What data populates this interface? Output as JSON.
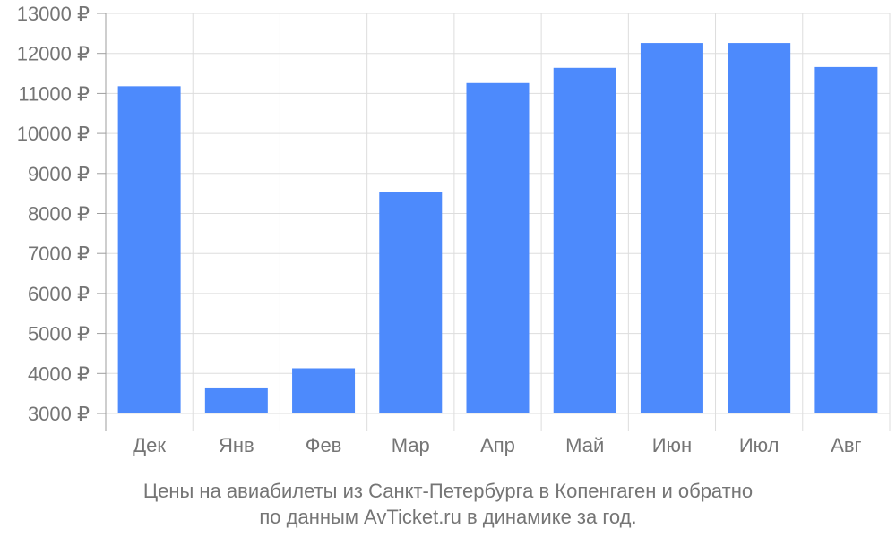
{
  "chart_data": {
    "type": "bar",
    "categories": [
      "Дек",
      "Янв",
      "Фев",
      "Мар",
      "Апр",
      "Май",
      "Июн",
      "Июл",
      "Авг"
    ],
    "values": [
      11180,
      3650,
      4130,
      8540,
      11260,
      11640,
      12260,
      12260,
      11660
    ],
    "ylim": [
      3000,
      13000
    ],
    "yticks": [
      3000,
      4000,
      5000,
      6000,
      7000,
      8000,
      9000,
      10000,
      11000,
      12000,
      13000
    ],
    "ytick_labels": [
      "3000 ₽",
      "4000 ₽",
      "5000 ₽",
      "6000 ₽",
      "7000 ₽",
      "8000 ₽",
      "9000 ₽",
      "10000 ₽",
      "11000 ₽",
      "12000 ₽",
      "13000 ₽"
    ],
    "grid": true,
    "bar_color": "#4d8afc",
    "caption": [
      "Цены на авиабилеты из Санкт-Петербурга в Копенгаген и обратно",
      "по данным AvTicket.ru в динамике за год."
    ]
  }
}
